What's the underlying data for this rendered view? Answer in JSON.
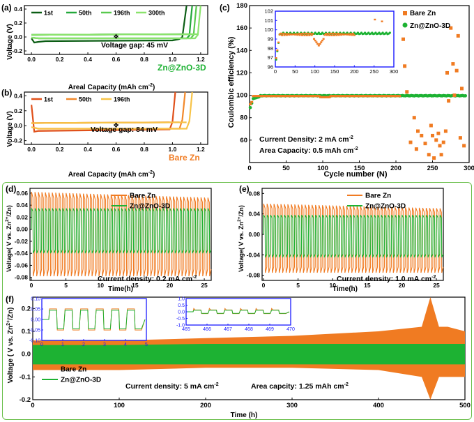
{
  "colors": {
    "bare": "#f07b22",
    "zno": "#1db233",
    "frame": "#6abf4b",
    "inset": "#1a1aff",
    "dark": "#0b5d14",
    "g50": "#23a83b",
    "g196": "#58c94e",
    "g300": "#8ae36c",
    "o1": "#e0501a",
    "o50": "#f2882a",
    "o196": "#f7c347"
  },
  "panel_a": {
    "label": "(a)",
    "ylabel": "Voltage (V)",
    "xlabel": "Areal Capacity (mAh cm",
    "xlabel_sup": "-2",
    "xlabel_end": ")",
    "annotation": "Voltage gap: 45 mV",
    "tag": "Zn@ZnO-3D",
    "xticks": [
      "0.0",
      "0.2",
      "0.4",
      "0.6",
      "0.8",
      "1.0",
      "1.2"
    ],
    "yticks": [
      "0.4",
      "0.2",
      "0.0",
      "-0.2"
    ],
    "legend": [
      "1st",
      "50th",
      "196th",
      "300th"
    ]
  },
  "panel_b": {
    "label": "(b)",
    "ylabel": "Voltage (V)",
    "xlabel": "Areal Capacity (mAh cm",
    "xlabel_sup": "-2",
    "xlabel_end": ")",
    "annotation": "Voltage gap: 84 mV",
    "tag": "Bare Zn",
    "xticks": [
      "0.0",
      "0.2",
      "0.4",
      "0.6",
      "0.8",
      "1.0",
      "1.2"
    ],
    "yticks": [
      "0.4",
      "0.2",
      "0.0",
      "-0.2"
    ],
    "legend": [
      "1st",
      "50th",
      "196th"
    ]
  },
  "panel_c": {
    "label": "(c)",
    "ylabel": "Coulombic efficiency (%)",
    "xlabel": "Cycle number (N)",
    "legend": [
      "Bare Zn",
      "Zn@ZnO-3D"
    ],
    "text1": "Current Density: 2 mA cm",
    "text1_sup": "-2",
    "text2": "Area Capacity: 0.5 mAh cm",
    "text2_sup": "-2",
    "xticks": [
      "0",
      "50",
      "100",
      "150",
      "200",
      "250",
      "300"
    ],
    "yticks": [
      "60",
      "80",
      "100",
      "120",
      "140",
      "160",
      "180"
    ],
    "inset_xticks": [
      "0",
      "50",
      "100",
      "150",
      "200",
      "250",
      "300"
    ],
    "inset_yticks": [
      "96",
      "97",
      "98",
      "99",
      "100",
      "101",
      "102"
    ]
  },
  "panel_d": {
    "label": "(d)",
    "ylabel": "Voltage( V vs. Zn",
    "ylabel_sup": "2+",
    "ylabel_end": "/Zn)",
    "xlabel": "Time(h)",
    "legend": [
      "Bare Zn",
      "Zn@ZnO-3D"
    ],
    "note": "Current density: 0.2 mA cm",
    "note_sup": "-2",
    "xticks": [
      "0",
      "5",
      "10",
      "15",
      "20",
      "25"
    ],
    "yticks": [
      "0.06",
      "0.04",
      "0.02",
      "0.00",
      "-0.02",
      "-0.04",
      "-0.06",
      "-0.08"
    ]
  },
  "panel_e": {
    "label": "(e)",
    "ylabel": "Voltage( V vs. Zn",
    "ylabel_sup": "2+",
    "ylabel_end": "/Zn)",
    "xlabel": "Time(h)",
    "legend": [
      "Bare Zn",
      "Zn@ZnO-3D"
    ],
    "note": "Current density: 1.0 mA cm",
    "note_sup": "-2",
    "xticks": [
      "0",
      "5",
      "10",
      "15",
      "20",
      "25"
    ],
    "yticks": [
      "0.08",
      "0.04",
      "0.00",
      "-0.04",
      "-0.08"
    ]
  },
  "panel_f": {
    "label": "(f)",
    "ylabel": "Voltage ( V vs. Zn",
    "ylabel_sup": "2+",
    "ylabel_end": "/Zn)",
    "xlabel": "Time (h)",
    "legend": [
      "Bare Zn",
      "Zn@ZnO-3D"
    ],
    "note1": "Current density: 5 mA cm",
    "note1_sup": "-2",
    "note2": "Area capcity: 1.25 mAh cm",
    "note2_sup": "-2",
    "xticks": [
      "0",
      "100",
      "200",
      "300",
      "400",
      "500"
    ],
    "yticks": [
      "0.2",
      "0.1",
      "0.0",
      "-0.1",
      "-0.2"
    ],
    "inset1_xticks": [
      "0",
      "1",
      "2",
      "3",
      "4",
      "5"
    ],
    "inset1_yticks": [
      "0.10",
      "0.05",
      "0.00",
      "-0.05",
      "-0.10"
    ],
    "inset2_xticks": [
      "465",
      "466",
      "467",
      "468",
      "469",
      "470"
    ],
    "inset2_yticks": [
      "1.0",
      "0.5",
      "0.0",
      "-0.5",
      "-1.0"
    ]
  },
  "chart_data": [
    {
      "panel": "a",
      "type": "line",
      "title": "",
      "xlabel": "Areal Capacity (mAh cm-2)",
      "ylabel": "Voltage (V)",
      "xlim": [
        -0.05,
        1.25
      ],
      "ylim": [
        -0.25,
        0.45
      ],
      "series": [
        {
          "name": "1st",
          "x": [
            0,
            0.02,
            0.05,
            0.1,
            0.5,
            1.0,
            1.05,
            1.07,
            1.09,
            1.1
          ],
          "y": [
            -0.02,
            -0.08,
            -0.07,
            -0.06,
            -0.055,
            -0.05,
            -0.03,
            0.0,
            0.3,
            0.45
          ]
        },
        {
          "name": "50th",
          "x": [
            0,
            0.05,
            0.5,
            1.1,
            1.12,
            1.13,
            1.14
          ],
          "y": [
            -0.01,
            -0.02,
            -0.02,
            -0.02,
            0.02,
            0.25,
            0.45
          ]
        },
        {
          "name": "196th",
          "x": [
            0,
            0.05,
            0.5,
            1.13,
            1.15,
            1.16,
            1.17
          ],
          "y": [
            -0.01,
            -0.02,
            -0.02,
            -0.02,
            0.03,
            0.25,
            0.45
          ]
        },
        {
          "name": "300th",
          "x": [
            0,
            0.05,
            0.5,
            1.16,
            1.18,
            1.19,
            1.2
          ],
          "y": [
            -0.01,
            -0.02,
            -0.02,
            -0.02,
            0.03,
            0.25,
            0.45
          ]
        }
      ],
      "upper": {
        "x": [
          0,
          0.5,
          1.2
        ],
        "y": [
          0.03,
          0.035,
          0.04
        ]
      }
    },
    {
      "panel": "b",
      "type": "line",
      "title": "",
      "xlabel": "Areal Capacity (mAh cm-2)",
      "ylabel": "Voltage (V)",
      "xlim": [
        -0.05,
        1.25
      ],
      "ylim": [
        -0.25,
        0.45
      ],
      "series": [
        {
          "name": "1st",
          "x": [
            0,
            0.02,
            0.05,
            0.5,
            0.98,
            1.0,
            1.02
          ],
          "y": [
            0.28,
            -0.08,
            -0.07,
            -0.06,
            -0.05,
            0.05,
            0.45
          ]
        },
        {
          "name": "50th",
          "x": [
            0,
            0.05,
            0.5,
            1.05,
            1.07,
            1.09
          ],
          "y": [
            -0.02,
            -0.04,
            -0.04,
            -0.04,
            0.08,
            0.45
          ]
        },
        {
          "name": "196th",
          "x": [
            0,
            0.05,
            0.5,
            1.1,
            1.12,
            1.14
          ],
          "y": [
            -0.02,
            -0.04,
            -0.04,
            -0.04,
            0.06,
            0.45
          ]
        }
      ],
      "upper": {
        "x": [
          0,
          0.5,
          1.1
        ],
        "y": [
          0.035,
          0.04,
          0.045
        ]
      }
    },
    {
      "panel": "c",
      "type": "scatter",
      "title": "",
      "xlabel": "Cycle number (N)",
      "ylabel": "Coulombic efficiency (%)",
      "xlim": [
        0,
        300
      ],
      "ylim": [
        40,
        180
      ],
      "series": [
        {
          "name": "Bare Zn",
          "x": [
            210,
            212,
            215,
            220,
            225,
            228,
            230,
            235,
            240,
            245,
            248,
            250,
            252,
            255,
            258,
            260,
            262,
            265,
            268,
            270,
            272,
            275,
            278,
            280,
            283,
            285,
            288,
            290,
            293
          ],
          "y": [
            150,
            126,
            103,
            58,
            80,
            52,
            68,
            64,
            57,
            47,
            73,
            64,
            44,
            60,
            66,
            55,
            47,
            58,
            68,
            120,
            95,
            160,
            128,
            100,
            122,
            153,
            62,
            106,
            55
          ]
        },
        {
          "name": "Zn@ZnO-3D",
          "x": [
            1,
            5,
            10,
            20,
            50,
            100,
            150,
            200,
            250,
            295
          ],
          "y": [
            87,
            95,
            98,
            99,
            99.5,
            99.4,
            99.5,
            99.6,
            99.6,
            99.6
          ]
        }
      ],
      "inset": {
        "xlim": [
          0,
          300
        ],
        "ylim": [
          96,
          102
        ],
        "bare": {
          "x": [
            100,
            110,
            120,
            150,
            200,
            250,
            280
          ],
          "y": [
            98.8,
            98.3,
            98.8,
            99.3,
            99.5,
            101,
            101
          ]
        },
        "zno": {
          "x": [
            0,
            10,
            30,
            100,
            200,
            300
          ],
          "y": [
            96.2,
            98.5,
            99.6,
            99.6,
            99.6,
            99.6
          ]
        }
      }
    },
    {
      "panel": "d",
      "type": "line",
      "title": "",
      "xlabel": "Time(h)",
      "ylabel": "Voltage( V vs. Zn2+/Zn)",
      "xlim": [
        -0.2,
        26
      ],
      "ylim": [
        -0.085,
        0.068
      ],
      "series": [
        {
          "name": "Bare Zn",
          "amplitude_h": 0.062,
          "amplitude_l": -0.078,
          "cycles": 52
        },
        {
          "name": "Zn@ZnO-3D",
          "amplitude_h": 0.035,
          "amplitude_l": -0.04,
          "cycles": 52
        }
      ]
    },
    {
      "panel": "e",
      "type": "line",
      "title": "",
      "xlabel": "Time(h)",
      "ylabel": "Voltage( V vs. Zn2+/Zn)",
      "xlim": [
        -0.2,
        26
      ],
      "ylim": [
        -0.09,
        0.09
      ],
      "series": [
        {
          "name": "Bare Zn",
          "amplitude_h": 0.06,
          "amplitude_l": -0.075,
          "cycles": 52
        },
        {
          "name": "Zn@ZnO-3D",
          "amplitude_h": 0.038,
          "amplitude_l": -0.045,
          "cycles": 52
        }
      ]
    },
    {
      "panel": "f",
      "type": "area",
      "title": "",
      "xlabel": "Time (h)",
      "ylabel": "Voltage ( V vs. Zn2+/Zn)",
      "xlim": [
        0,
        500
      ],
      "ylim": [
        -0.2,
        0.25
      ],
      "series": [
        {
          "name": "Bare Zn",
          "x": [
            0,
            100,
            200,
            300,
            400,
            450,
            460,
            470,
            480,
            500
          ],
          "upper": [
            0.06,
            0.06,
            0.07,
            0.08,
            0.1,
            0.12,
            0.25,
            0.12,
            0.12,
            0.1
          ],
          "lower": [
            -0.07,
            -0.07,
            -0.06,
            -0.06,
            -0.07,
            -0.1,
            -0.2,
            -0.1,
            -0.1,
            -0.1
          ]
        },
        {
          "name": "Zn@ZnO-3D",
          "x": [
            0,
            100,
            200,
            300,
            400,
            500
          ],
          "upper": [
            0.04,
            0.04,
            0.045,
            0.045,
            0.045,
            0.045
          ],
          "lower": [
            -0.045,
            -0.045,
            -0.045,
            -0.045,
            -0.045,
            -0.045
          ]
        }
      ]
    }
  ]
}
